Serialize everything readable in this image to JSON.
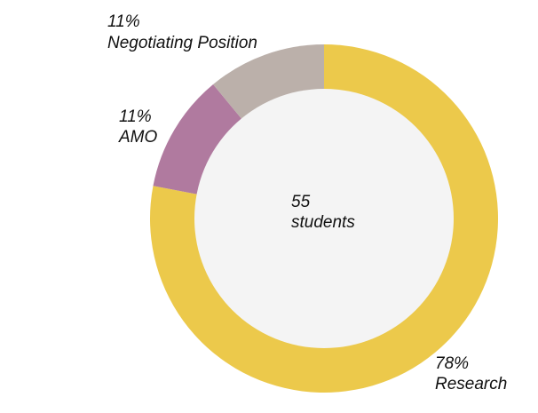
{
  "chart_data": {
    "type": "pie",
    "variant": "donut",
    "center_label": {
      "value": "55",
      "unit": "students"
    },
    "slices": [
      {
        "label": "Research",
        "percent_label": "78%",
        "value": 78,
        "color": "#ecc94b"
      },
      {
        "label": "AMO",
        "percent_label": "11%",
        "value": 11,
        "color": "#b07a9f"
      },
      {
        "label": "Negotiating Position",
        "percent_label": "11%",
        "value": 11,
        "color": "#bbb0aa"
      }
    ],
    "inner_color": "#f4f4f4"
  }
}
